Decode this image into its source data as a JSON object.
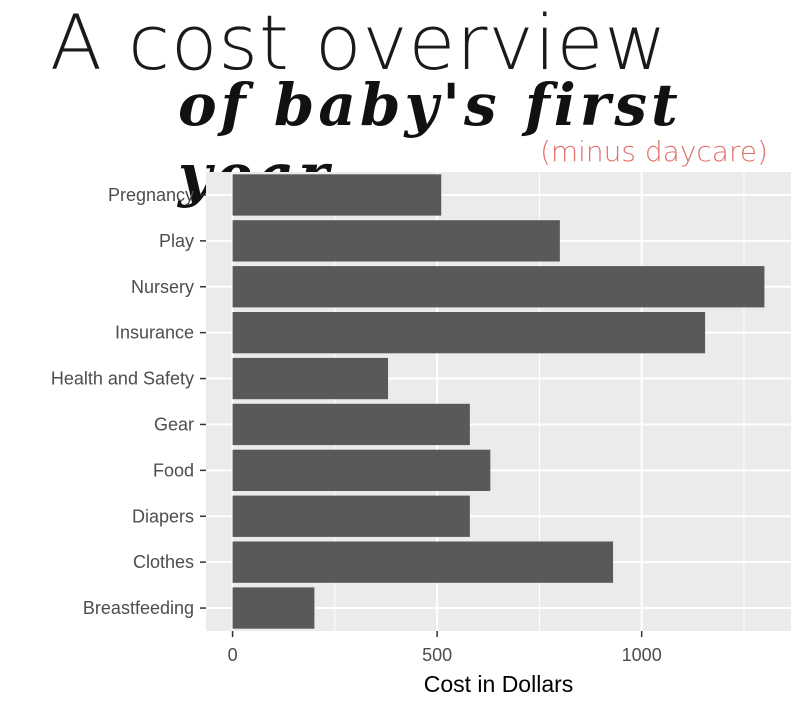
{
  "header": {
    "title": "A cost overview",
    "subtitle": "of baby's first year",
    "note": "(minus daycare)"
  },
  "colors": {
    "panel": "#ebebeb",
    "grid": "#ffffff",
    "bar": "#595959",
    "note": "#e0706a"
  },
  "chart_data": {
    "type": "bar",
    "orientation": "horizontal",
    "categories": [
      "Pregnancy",
      "Play",
      "Nursery",
      "Insurance",
      "Health and Safety",
      "Gear",
      "Food",
      "Diapers",
      "Clothes",
      "Breastfeeding"
    ],
    "values": [
      510,
      800,
      1300,
      1155,
      380,
      580,
      630,
      580,
      930,
      200
    ],
    "xlabel": "Cost in Dollars",
    "ylabel": "",
    "xlim": [
      -65,
      1365
    ],
    "xticks": [
      0,
      500,
      1000
    ],
    "xtick_labels": [
      "0",
      "500",
      "1000"
    ],
    "grid": true
  }
}
